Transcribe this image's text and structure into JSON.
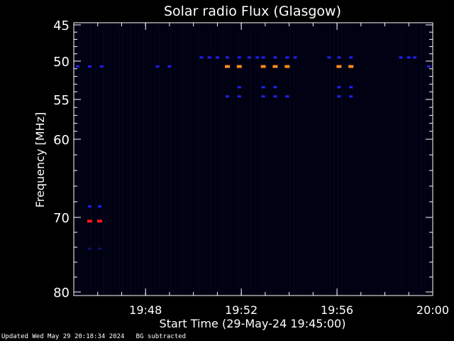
{
  "chart_data": {
    "type": "heatmap",
    "title": "Solar radio Flux (Glasgow)",
    "xlabel": "Start Time (29-May-24 19:45:00)",
    "ylabel": "Frequency [MHz]",
    "x_range": [
      "19:45:00",
      "20:00:00"
    ],
    "y_range_mhz": [
      45,
      80
    ],
    "y_ticks": [
      45,
      50,
      55,
      60,
      70,
      80
    ],
    "x_ticks": [
      "19:48",
      "19:52",
      "19:56",
      "20:00"
    ],
    "background_color": "#000010",
    "features": [
      {
        "freq_mhz": 50.7,
        "times": [
          "19:51:25",
          "19:51:55",
          "19:52:55",
          "19:53:25",
          "19:53:55",
          "19:56:05",
          "19:56:35"
        ],
        "intensity": "high",
        "color": "#ff8c1a"
      },
      {
        "freq_mhz": 49.5,
        "times": [
          "19:50:20",
          "19:50:40",
          "19:51:00",
          "19:51:25",
          "19:51:55",
          "19:52:20",
          "19:52:40",
          "19:52:55",
          "19:53:25",
          "19:53:55",
          "19:54:15",
          "19:55:40",
          "19:56:05",
          "19:56:35",
          "19:58:40",
          "19:59:00",
          "19:59:15"
        ],
        "intensity": "medium",
        "color": "#2020ff"
      },
      {
        "freq_mhz": 50.7,
        "times": [
          "19:45:10",
          "19:45:40",
          "19:46:10",
          "19:48:30",
          "19:49:00",
          "19:59:50"
        ],
        "intensity": "medium",
        "color": "#2020ff"
      },
      {
        "freq_mhz": 53.4,
        "times": [
          "19:51:55",
          "19:52:55",
          "19:53:25",
          "19:56:05",
          "19:56:35"
        ],
        "intensity": "medium",
        "color": "#2020ff"
      },
      {
        "freq_mhz": 54.6,
        "times": [
          "19:51:25",
          "19:51:55",
          "19:52:55",
          "19:53:25",
          "19:53:55",
          "19:56:05",
          "19:56:35"
        ],
        "intensity": "medium",
        "color": "#2020ff"
      },
      {
        "freq_mhz": 68.6,
        "times": [
          "19:45:40",
          "19:46:05"
        ],
        "intensity": "medium",
        "color": "#2020ff"
      },
      {
        "freq_mhz": 70.5,
        "times": [
          "19:45:40",
          "19:46:05"
        ],
        "intensity": "very-high",
        "color": "#ff1a1a"
      },
      {
        "freq_mhz": 74.2,
        "times": [
          "19:45:40",
          "19:46:05"
        ],
        "intensity": "low",
        "color": "#101070"
      }
    ]
  },
  "footer": {
    "updated": "Updated Wed May 29 20:18:34 2024",
    "note": "BG subtracted"
  }
}
